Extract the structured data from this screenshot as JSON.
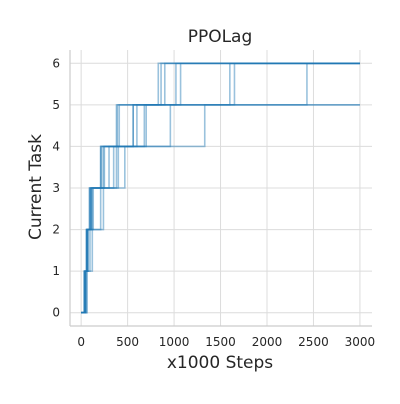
{
  "chart_data": {
    "type": "line",
    "title": "PPOLag",
    "xlabel": "x1000 Steps",
    "ylabel": "Current Task",
    "xlim": [
      -120,
      3130
    ],
    "ylim": [
      -0.32,
      6.32
    ],
    "xticks": [
      0,
      500,
      1000,
      1500,
      2000,
      2500,
      3000
    ],
    "xtick_labels": [
      "0",
      "500",
      "1000",
      "1500",
      "2000",
      "2500",
      "3000"
    ],
    "yticks": [
      0,
      1,
      2,
      3,
      4,
      5,
      6
    ],
    "ytick_labels": [
      "0",
      "1",
      "2",
      "3",
      "4",
      "5",
      "6"
    ],
    "grid": true,
    "legend": "none",
    "line_color": "#1f77b4",
    "series": [
      {
        "x": [
          0,
          40,
          55,
          70,
          90,
          210,
          380,
          860,
          3000
        ],
        "y": [
          0,
          1,
          2,
          2,
          3,
          4,
          5,
          6,
          6
        ]
      },
      {
        "x": [
          0,
          30,
          60,
          80,
          100,
          220,
          390,
          900,
          3000
        ],
        "y": [
          0,
          1,
          2,
          2,
          3,
          4,
          5,
          6,
          6
        ]
      },
      {
        "x": [
          0,
          40,
          65,
          85,
          110,
          250,
          600,
          1600,
          3000
        ],
        "y": [
          0,
          1,
          2,
          2,
          3,
          4,
          5,
          6,
          6
        ]
      },
      {
        "x": [
          0,
          45,
          70,
          90,
          120,
          350,
          700,
          1650,
          3000
        ],
        "y": [
          0,
          1,
          2,
          2,
          3,
          4,
          5,
          6,
          6
        ]
      },
      {
        "x": [
          0,
          50,
          75,
          95,
          130,
          400,
          960,
          2430,
          3000
        ],
        "y": [
          0,
          1,
          2,
          2,
          3,
          4,
          5,
          6,
          6
        ]
      },
      {
        "x": [
          0,
          35,
          60,
          80,
          100,
          300,
          680,
          1070,
          3000
        ],
        "y": [
          0,
          1,
          2,
          2,
          3,
          4,
          5,
          6,
          6
        ]
      },
      {
        "x": [
          0,
          55,
          120,
          230,
          240,
          470,
          560,
          3000
        ],
        "y": [
          0,
          1,
          2,
          2,
          3,
          4,
          5,
          5
        ]
      },
      {
        "x": [
          0,
          45,
          95,
          110,
          210,
          380,
          1330,
          3000
        ],
        "y": [
          0,
          1,
          2,
          2,
          3,
          4,
          5,
          5
        ]
      },
      {
        "x": [
          0,
          40,
          60,
          80,
          90,
          240,
          560,
          1020,
          3000
        ],
        "y": [
          0,
          1,
          2,
          2,
          3,
          4,
          5,
          6,
          6
        ]
      },
      {
        "x": [
          0,
          65,
          70,
          80,
          110,
          210,
          410,
          830,
          3000
        ],
        "y": [
          0,
          1,
          2,
          2,
          3,
          4,
          5,
          6,
          6
        ]
      }
    ]
  }
}
